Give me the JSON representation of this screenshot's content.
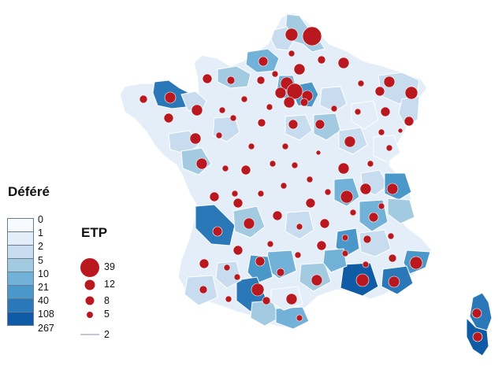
{
  "legend": {
    "fill_title": "Déféré",
    "fill_breaks": [
      "0",
      "1",
      "2",
      "5",
      "10",
      "21",
      "40",
      "108",
      "267"
    ],
    "fill_colors": [
      "#f7fbff",
      "#e3eef9",
      "#c7dcef",
      "#a2cbe2",
      "#72b2d8",
      "#4a97c9",
      "#2a78b8",
      "#0f5ba6"
    ],
    "size_title": "ETP",
    "size_values": [
      "39",
      "12",
      "8",
      "5",
      "2"
    ]
  },
  "colors": {
    "circle": "#b9181f",
    "border": "#ffffff"
  }
}
